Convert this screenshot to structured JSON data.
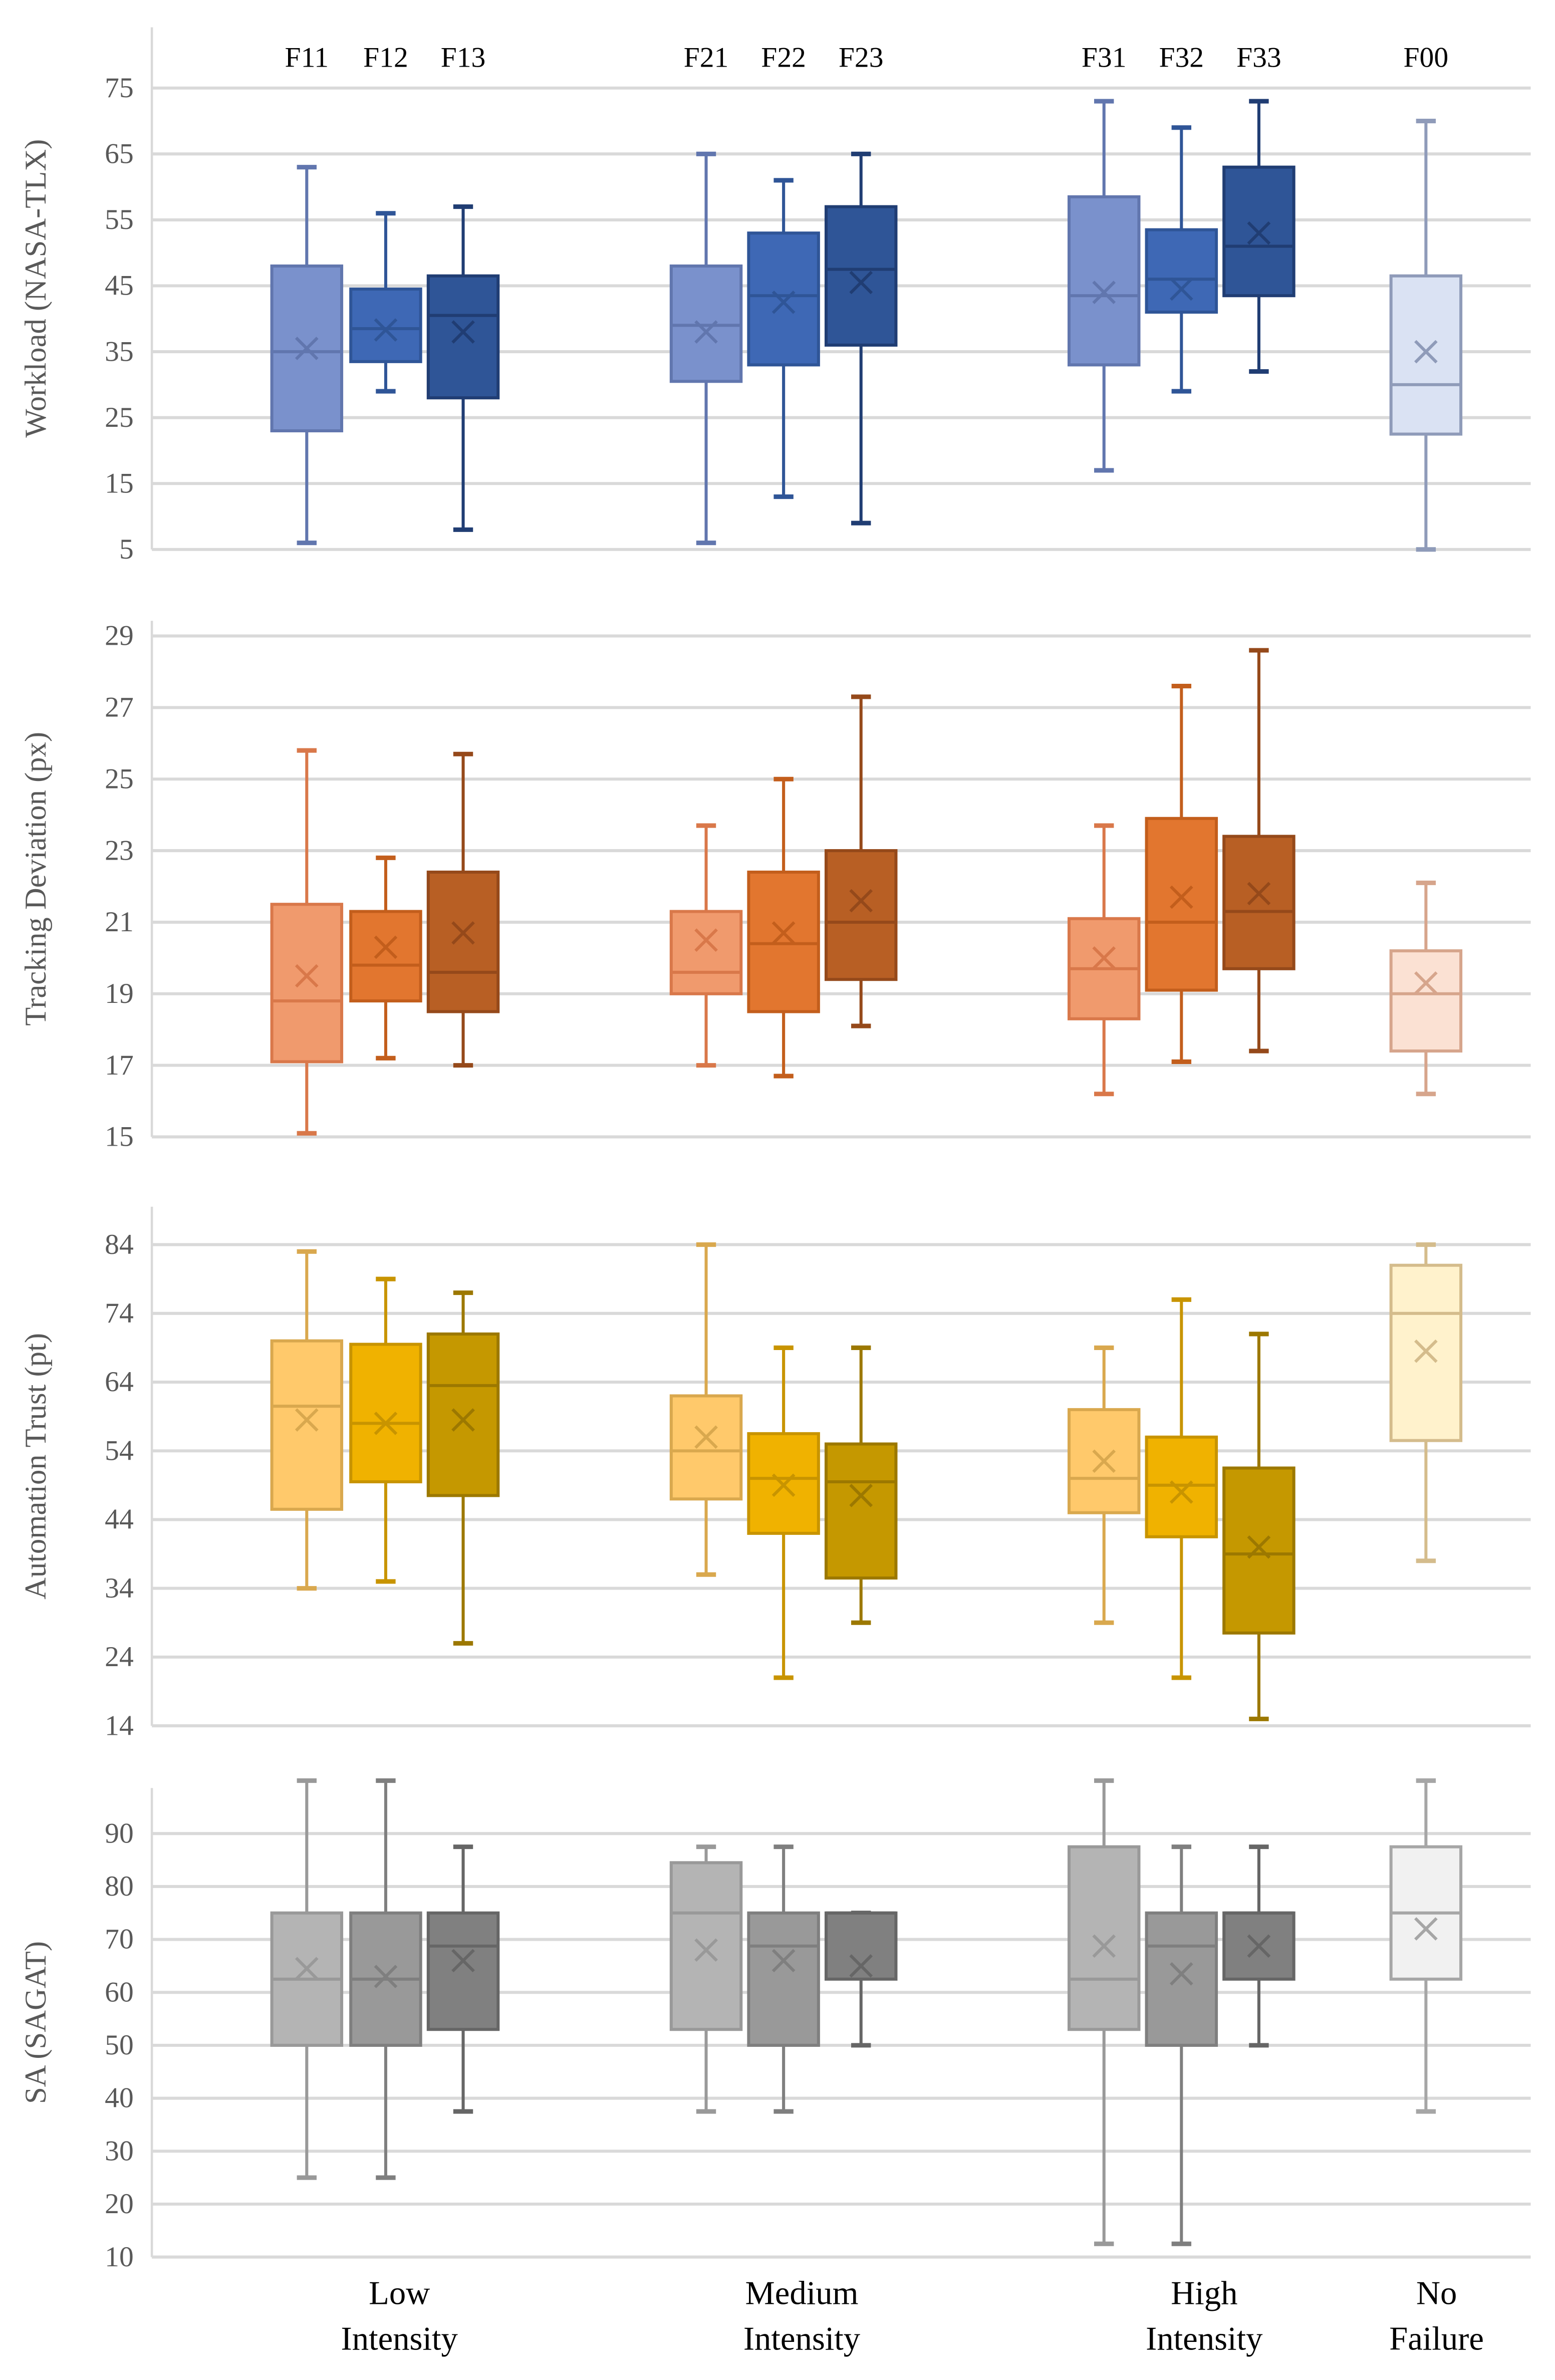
{
  "chart_data": {
    "type": "box",
    "series_labels": [
      "F11",
      "F12",
      "F13",
      "F21",
      "F22",
      "F23",
      "F31",
      "F32",
      "F33",
      "F00"
    ],
    "categories": [
      [
        "Low",
        "Intensity"
      ],
      [
        "Medium",
        "Intensity"
      ],
      [
        "High",
        "Intensity"
      ],
      [
        "No",
        "Failure"
      ]
    ],
    "grid": true,
    "panels": [
      {
        "ylabel": "Workload (NASA-TLX)",
        "ylim": [
          5,
          80
        ],
        "ticks": [
          5,
          15,
          25,
          35,
          45,
          55,
          65,
          75
        ],
        "colors": {
          "fill": [
            "#7a91cc",
            "#3e68b5",
            "#2f5597",
            "#dae2f3"
          ],
          "stroke": [
            "#6176ae",
            "#2f5597",
            "#203d73",
            "#8f9bb9"
          ]
        },
        "boxes": [
          {
            "label": "F11",
            "min": 6,
            "q1": 23,
            "median": 35,
            "q3": 48,
            "max": 63,
            "mean": 35.5
          },
          {
            "label": "F12",
            "min": 29,
            "q1": 33.5,
            "median": 38.5,
            "q3": 44.5,
            "max": 56,
            "mean": 38.3
          },
          {
            "label": "F13",
            "min": 8,
            "q1": 28,
            "median": 40.5,
            "q3": 46.5,
            "max": 57,
            "mean": 38
          },
          {
            "label": "F21",
            "min": 6,
            "q1": 30.5,
            "median": 39,
            "q3": 48,
            "max": 65,
            "mean": 38
          },
          {
            "label": "F22",
            "min": 13,
            "q1": 33,
            "median": 43.5,
            "q3": 53,
            "max": 61,
            "mean": 42.5
          },
          {
            "label": "F23",
            "min": 9,
            "q1": 36,
            "median": 47.5,
            "q3": 57,
            "max": 65,
            "mean": 45.5
          },
          {
            "label": "F31",
            "min": 17,
            "q1": 33,
            "median": 43.5,
            "q3": 58.5,
            "max": 73,
            "mean": 44
          },
          {
            "label": "F32",
            "min": 29,
            "q1": 41,
            "median": 46,
            "q3": 53.5,
            "max": 69,
            "mean": 44.5
          },
          {
            "label": "F33",
            "min": 32,
            "q1": 43.5,
            "median": 51,
            "q3": 63,
            "max": 73,
            "mean": 53
          },
          {
            "label": "F00",
            "min": 5,
            "q1": 22.5,
            "median": 30,
            "q3": 46.5,
            "max": 70,
            "mean": 35
          }
        ]
      },
      {
        "ylabel": "Tracking Deviation (px)",
        "ylim": [
          15,
          29
        ],
        "ticks": [
          15,
          17,
          19,
          21,
          23,
          25,
          27,
          29
        ],
        "colors": {
          "fill": [
            "#f09a6d",
            "#e2762f",
            "#b85f24",
            "#fbe1d3"
          ],
          "stroke": [
            "#d9784a",
            "#c35e1c",
            "#95491a",
            "#d6a58c"
          ]
        },
        "boxes": [
          {
            "label": "F11",
            "min": 15.1,
            "q1": 17.1,
            "median": 18.8,
            "q3": 21.5,
            "max": 25.8,
            "mean": 19.5
          },
          {
            "label": "F12",
            "min": 17.2,
            "q1": 18.8,
            "median": 19.8,
            "q3": 21.3,
            "max": 22.8,
            "mean": 20.3
          },
          {
            "label": "F13",
            "min": 17.0,
            "q1": 18.5,
            "median": 19.6,
            "q3": 22.4,
            "max": 25.7,
            "mean": 20.7
          },
          {
            "label": "F21",
            "min": 17.0,
            "q1": 19.0,
            "median": 19.6,
            "q3": 21.3,
            "max": 23.7,
            "mean": 20.5
          },
          {
            "label": "F22",
            "min": 16.7,
            "q1": 18.5,
            "median": 20.4,
            "q3": 22.4,
            "max": 25.0,
            "mean": 20.7
          },
          {
            "label": "F23",
            "min": 18.1,
            "q1": 19.4,
            "median": 21.0,
            "q3": 23.0,
            "max": 27.3,
            "mean": 21.6
          },
          {
            "label": "F31",
            "min": 16.2,
            "q1": 18.3,
            "median": 19.7,
            "q3": 21.1,
            "max": 23.7,
            "mean": 20.0
          },
          {
            "label": "F32",
            "min": 17.1,
            "q1": 19.1,
            "median": 21.0,
            "q3": 23.9,
            "max": 27.6,
            "mean": 21.7
          },
          {
            "label": "F33",
            "min": 17.4,
            "q1": 19.7,
            "median": 21.3,
            "q3": 23.4,
            "max": 28.6,
            "mean": 21.8
          },
          {
            "label": "F00",
            "min": 16.2,
            "q1": 17.4,
            "median": 19.0,
            "q3": 20.2,
            "max": 22.1,
            "mean": 19.3
          }
        ]
      },
      {
        "ylabel": "Automation Trust (pt)",
        "ylim": [
          14,
          89.5
        ],
        "ticks": [
          14,
          24,
          34,
          44,
          54,
          64,
          74,
          84
        ],
        "colors": {
          "fill": [
            "#ffc96b",
            "#f0b200",
            "#c59800",
            "#fff2cc"
          ],
          "stroke": [
            "#d9a84e",
            "#c89400",
            "#9c7800",
            "#d4bc8c"
          ]
        },
        "boxes": [
          {
            "label": "F11",
            "min": 34,
            "q1": 45.5,
            "median": 60.5,
            "q3": 70,
            "max": 83,
            "mean": 58.5
          },
          {
            "label": "F12",
            "min": 35,
            "q1": 49.5,
            "median": 58,
            "q3": 69.5,
            "max": 79,
            "mean": 58
          },
          {
            "label": "F13",
            "min": 26,
            "q1": 47.5,
            "median": 63.5,
            "q3": 71,
            "max": 77,
            "mean": 58.5
          },
          {
            "label": "F21",
            "min": 36,
            "q1": 47,
            "median": 54,
            "q3": 62,
            "max": 84,
            "mean": 56
          },
          {
            "label": "F22",
            "min": 21,
            "q1": 42,
            "median": 50,
            "q3": 56.5,
            "max": 69,
            "mean": 49
          },
          {
            "label": "F23",
            "min": 29,
            "q1": 35.5,
            "median": 49.5,
            "q3": 55,
            "max": 69,
            "mean": 47.5
          },
          {
            "label": "F31",
            "min": 29,
            "q1": 45,
            "median": 50,
            "q3": 60,
            "max": 69,
            "mean": 52.5
          },
          {
            "label": "F32",
            "min": 21,
            "q1": 41.5,
            "median": 49,
            "q3": 56,
            "max": 76,
            "mean": 48
          },
          {
            "label": "F33",
            "min": 15,
            "q1": 27.5,
            "median": 39,
            "q3": 51.5,
            "max": 71,
            "mean": 40
          },
          {
            "label": "F00",
            "min": 38,
            "q1": 55.5,
            "median": 74,
            "q3": 81,
            "max": 84,
            "mean": 68.5
          }
        ]
      },
      {
        "ylabel": "SA (SAGAT)",
        "ylim": [
          10,
          99
        ],
        "ticks": [
          10,
          20,
          30,
          40,
          50,
          60,
          70,
          80,
          90
        ],
        "colors": {
          "fill": [
            "#b4b4b4",
            "#999999",
            "#808080",
            "#f1f1f1"
          ],
          "stroke": [
            "#999999",
            "#7f7f7f",
            "#666666",
            "#a6a6a6"
          ]
        },
        "boxes": [
          {
            "label": "F11",
            "min": 25,
            "q1": 50,
            "median": 62.5,
            "q3": 75,
            "max": 100,
            "mean": 64.5
          },
          {
            "label": "F12",
            "min": 25,
            "q1": 50,
            "median": 62.5,
            "q3": 75,
            "max": 100,
            "mean": 63
          },
          {
            "label": "F13",
            "min": 37.5,
            "q1": 53,
            "median": 68.75,
            "q3": 75,
            "max": 87.5,
            "mean": 66
          },
          {
            "label": "F21",
            "min": 37.5,
            "q1": 53,
            "median": 75,
            "q3": 84.5,
            "max": 87.5,
            "mean": 68
          },
          {
            "label": "F22",
            "min": 37.5,
            "q1": 50,
            "median": 68.75,
            "q3": 75,
            "max": 87.5,
            "mean": 66
          },
          {
            "label": "F23",
            "min": 50,
            "q1": 62.5,
            "median": 75,
            "q3": 75,
            "max": 75,
            "mean": 65
          },
          {
            "label": "F31",
            "min": 12.5,
            "q1": 53,
            "median": 62.5,
            "q3": 87.5,
            "max": 100,
            "mean": 68.75
          },
          {
            "label": "F32",
            "min": 12.5,
            "q1": 50,
            "median": 68.75,
            "q3": 75,
            "max": 87.5,
            "mean": 63.5
          },
          {
            "label": "F33",
            "min": 50,
            "q1": 62.5,
            "median": 75,
            "q3": 75,
            "max": 87.5,
            "mean": 68.75
          },
          {
            "label": "F00",
            "min": 37.5,
            "q1": 62.5,
            "median": 75,
            "q3": 87.5,
            "max": 100,
            "mean": 72
          }
        ]
      }
    ]
  }
}
